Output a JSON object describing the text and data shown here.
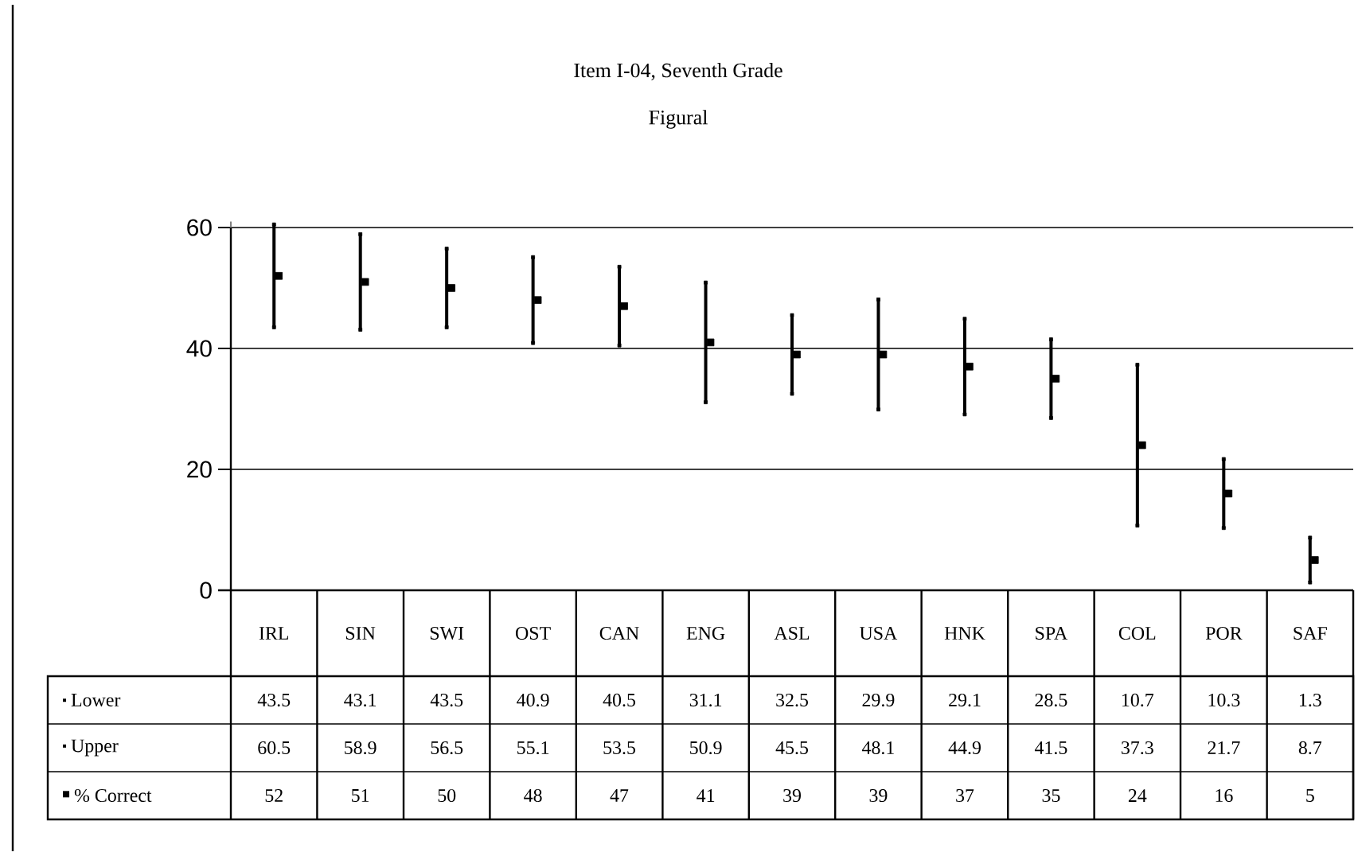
{
  "chart_data": {
    "type": "scatter",
    "title": "Item I-04, Seventh Grade",
    "subtitle": "Figural",
    "categories": [
      "IRL",
      "SIN",
      "SWI",
      "OST",
      "CAN",
      "ENG",
      "ASL",
      "USA",
      "HNK",
      "SPA",
      "COL",
      "POR",
      "SAF"
    ],
    "series": [
      {
        "name": "Lower",
        "marker": "square",
        "color": "#000000",
        "values": [
          43.5,
          43.1,
          43.5,
          40.9,
          40.5,
          31.1,
          32.5,
          29.9,
          29.1,
          28.5,
          10.7,
          10.3,
          1.3
        ]
      },
      {
        "name": "Upper",
        "marker": "square",
        "color": "#000000",
        "values": [
          60.5,
          58.9,
          56.5,
          55.1,
          53.5,
          50.9,
          45.5,
          48.1,
          44.9,
          41.5,
          37.3,
          21.7,
          8.7
        ]
      },
      {
        "name": "% Correct",
        "marker": "square",
        "color": "#000000",
        "values": [
          52,
          51,
          50,
          48,
          47,
          41,
          39,
          39,
          37,
          35,
          24,
          16,
          5
        ]
      }
    ],
    "ylim": [
      0,
      61
    ],
    "yticks": [
      0,
      20,
      40,
      60
    ],
    "grid": "y",
    "data_labels": true,
    "legend": "bottom left"
  }
}
